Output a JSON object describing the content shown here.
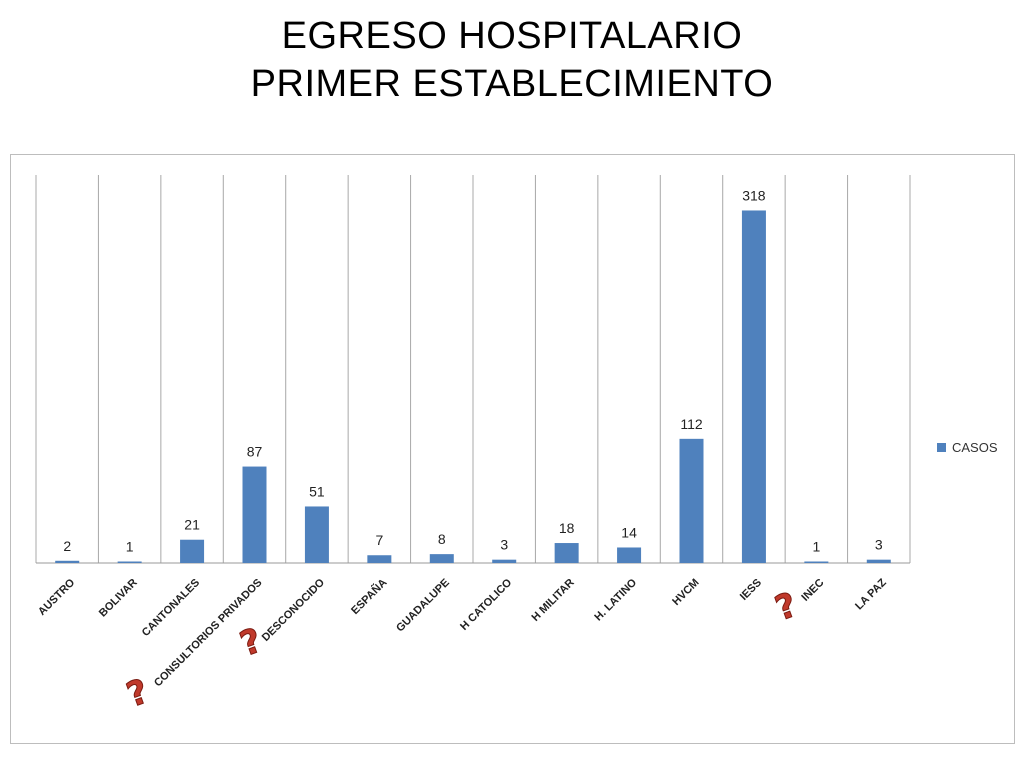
{
  "title_line1": "EGRESO HOSPITALARIO",
  "title_line2": "PRIMER ESTABLECIMIENTO",
  "colors": {
    "bar": "#4f81bd",
    "marker": "#c0392b"
  },
  "chart_data": {
    "type": "bar",
    "categories": [
      "AUSTRO",
      "BOLIVAR",
      "CANTONALES",
      "CONSULTORIOS PRIVADOS",
      "DESCONOCIDO",
      "ESPAÑA",
      "GUADALUPE",
      "H CATOLICO",
      "H MILITAR",
      "H. LATINO",
      "HVCM",
      "IESS",
      "INEC",
      "LA PAZ"
    ],
    "series": [
      {
        "name": "CASOS",
        "values": [
          2,
          1,
          21,
          87,
          51,
          7,
          8,
          3,
          18,
          14,
          112,
          318,
          1,
          3
        ]
      }
    ],
    "ylim": [
      0,
      350
    ],
    "grid": "vertical",
    "legend": "right",
    "question_markers": [
      "CONSULTORIOS PRIVADOS",
      "DESCONOCIDO",
      "INEC"
    ]
  }
}
